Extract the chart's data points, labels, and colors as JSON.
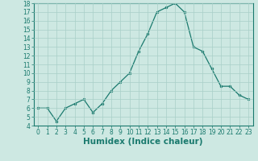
{
  "x": [
    0,
    1,
    2,
    3,
    4,
    5,
    6,
    7,
    8,
    9,
    10,
    11,
    12,
    13,
    14,
    15,
    16,
    17,
    18,
    19,
    20,
    21,
    22,
    23
  ],
  "y": [
    6,
    6,
    4.5,
    6,
    6.5,
    7,
    5.5,
    6.5,
    8,
    9,
    10,
    12.5,
    14.5,
    17,
    17.5,
    18,
    17,
    13,
    12.5,
    10.5,
    8.5,
    8.5,
    7.5,
    7
  ],
  "line_color": "#1a7a6e",
  "marker_color": "#1a7a6e",
  "bg_color": "#cde8e2",
  "grid_color": "#a8cfc8",
  "xlabel": "Humidex (Indice chaleur)",
  "ylim": [
    4,
    18
  ],
  "xlim": [
    0,
    23
  ],
  "yticks": [
    4,
    5,
    6,
    7,
    8,
    9,
    10,
    11,
    12,
    13,
    14,
    15,
    16,
    17,
    18
  ],
  "xticks": [
    0,
    1,
    2,
    3,
    4,
    5,
    6,
    7,
    8,
    9,
    10,
    11,
    12,
    13,
    14,
    15,
    16,
    17,
    18,
    19,
    20,
    21,
    22,
    23
  ],
  "tick_fontsize": 5.5,
  "xlabel_fontsize": 7.5,
  "line_color_spine": "#1a7a6e"
}
